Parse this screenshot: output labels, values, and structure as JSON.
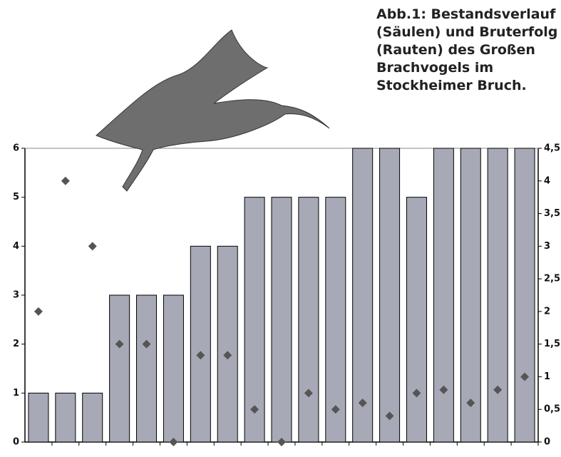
{
  "chart_data": {
    "type": "bar",
    "title": [
      "Abb.1: Bestandsverlauf",
      "(Säulen) und Bruterfolg",
      "(Rauten) des Großen",
      "Brachvogels im",
      "Stockheimer Bruch."
    ],
    "categories": [
      null,
      null,
      null,
      null,
      null,
      null,
      null,
      null,
      null,
      null,
      null,
      null,
      null,
      null,
      null,
      null,
      null,
      null,
      null
    ],
    "series": [
      {
        "color": "#a7a9b6",
        "values": [
          1,
          1,
          1,
          3,
          3,
          3,
          4,
          4,
          5,
          5,
          5,
          5,
          6,
          6,
          5,
          6,
          6,
          6,
          6
        ]
      },
      {
        "color": "#555555",
        "axis": "y2",
        "marker": "diamond",
        "values": [
          2.0,
          4.0,
          3.0,
          1.5,
          1.5,
          0,
          1.33,
          1.33,
          0.5,
          0,
          0.75,
          0.5,
          0.6,
          0.4,
          0.75,
          0.8,
          0.6,
          0.8,
          1.0
        ]
      }
    ],
    "ylim": [
      0,
      6
    ],
    "yticks": [
      0,
      1,
      2,
      3,
      4,
      5,
      6
    ],
    "y2lim": [
      0,
      4.5
    ],
    "y2ticks": [
      0,
      {
        "value": 0.5,
        "label": "0,5"
      },
      1,
      {
        "value": 1.5,
        "label": "1,5"
      },
      2,
      {
        "value": 2.5,
        "label": "2,5"
      },
      3,
      {
        "value": 3.5,
        "label": "3,5"
      },
      4,
      {
        "value": 4.5,
        "label": "4,5"
      }
    ]
  }
}
